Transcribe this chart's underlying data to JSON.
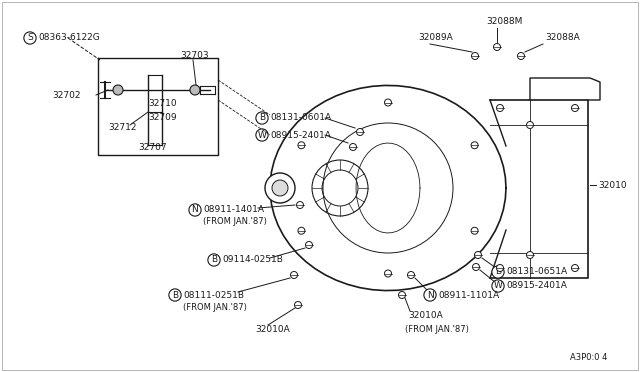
{
  "bg_color": "#ffffff",
  "line_color": "#1a1a1a",
  "fig_width": 6.4,
  "fig_height": 3.72,
  "dpi": 100,
  "labels": {
    "s_part": "08363-6122G",
    "p32702": "32702",
    "p32703": "32703",
    "p32710": "32710",
    "p32709": "32709",
    "p32712": "32712",
    "p32707": "32707",
    "p32088M": "32088M",
    "p32089A": "32089A",
    "p32088A": "32088A",
    "b1": "08131-0601A",
    "w1": "08915-2401A",
    "p32010": "32010",
    "n1": "08911-1401A",
    "from87_1": "(FROM JAN.'87)",
    "b2": "09114-0251B",
    "b3": "08111-0251B",
    "from87_2": "(FROM JAN.'87)",
    "p32010a_bl": "32010A",
    "b4": "08131-0651A",
    "w2": "08915-2401A",
    "n2": "08911-1101A",
    "p32010a_br": "32010A",
    "from87_3": "(FROM JAN.'87)",
    "ref": "A3P0:0 4"
  }
}
